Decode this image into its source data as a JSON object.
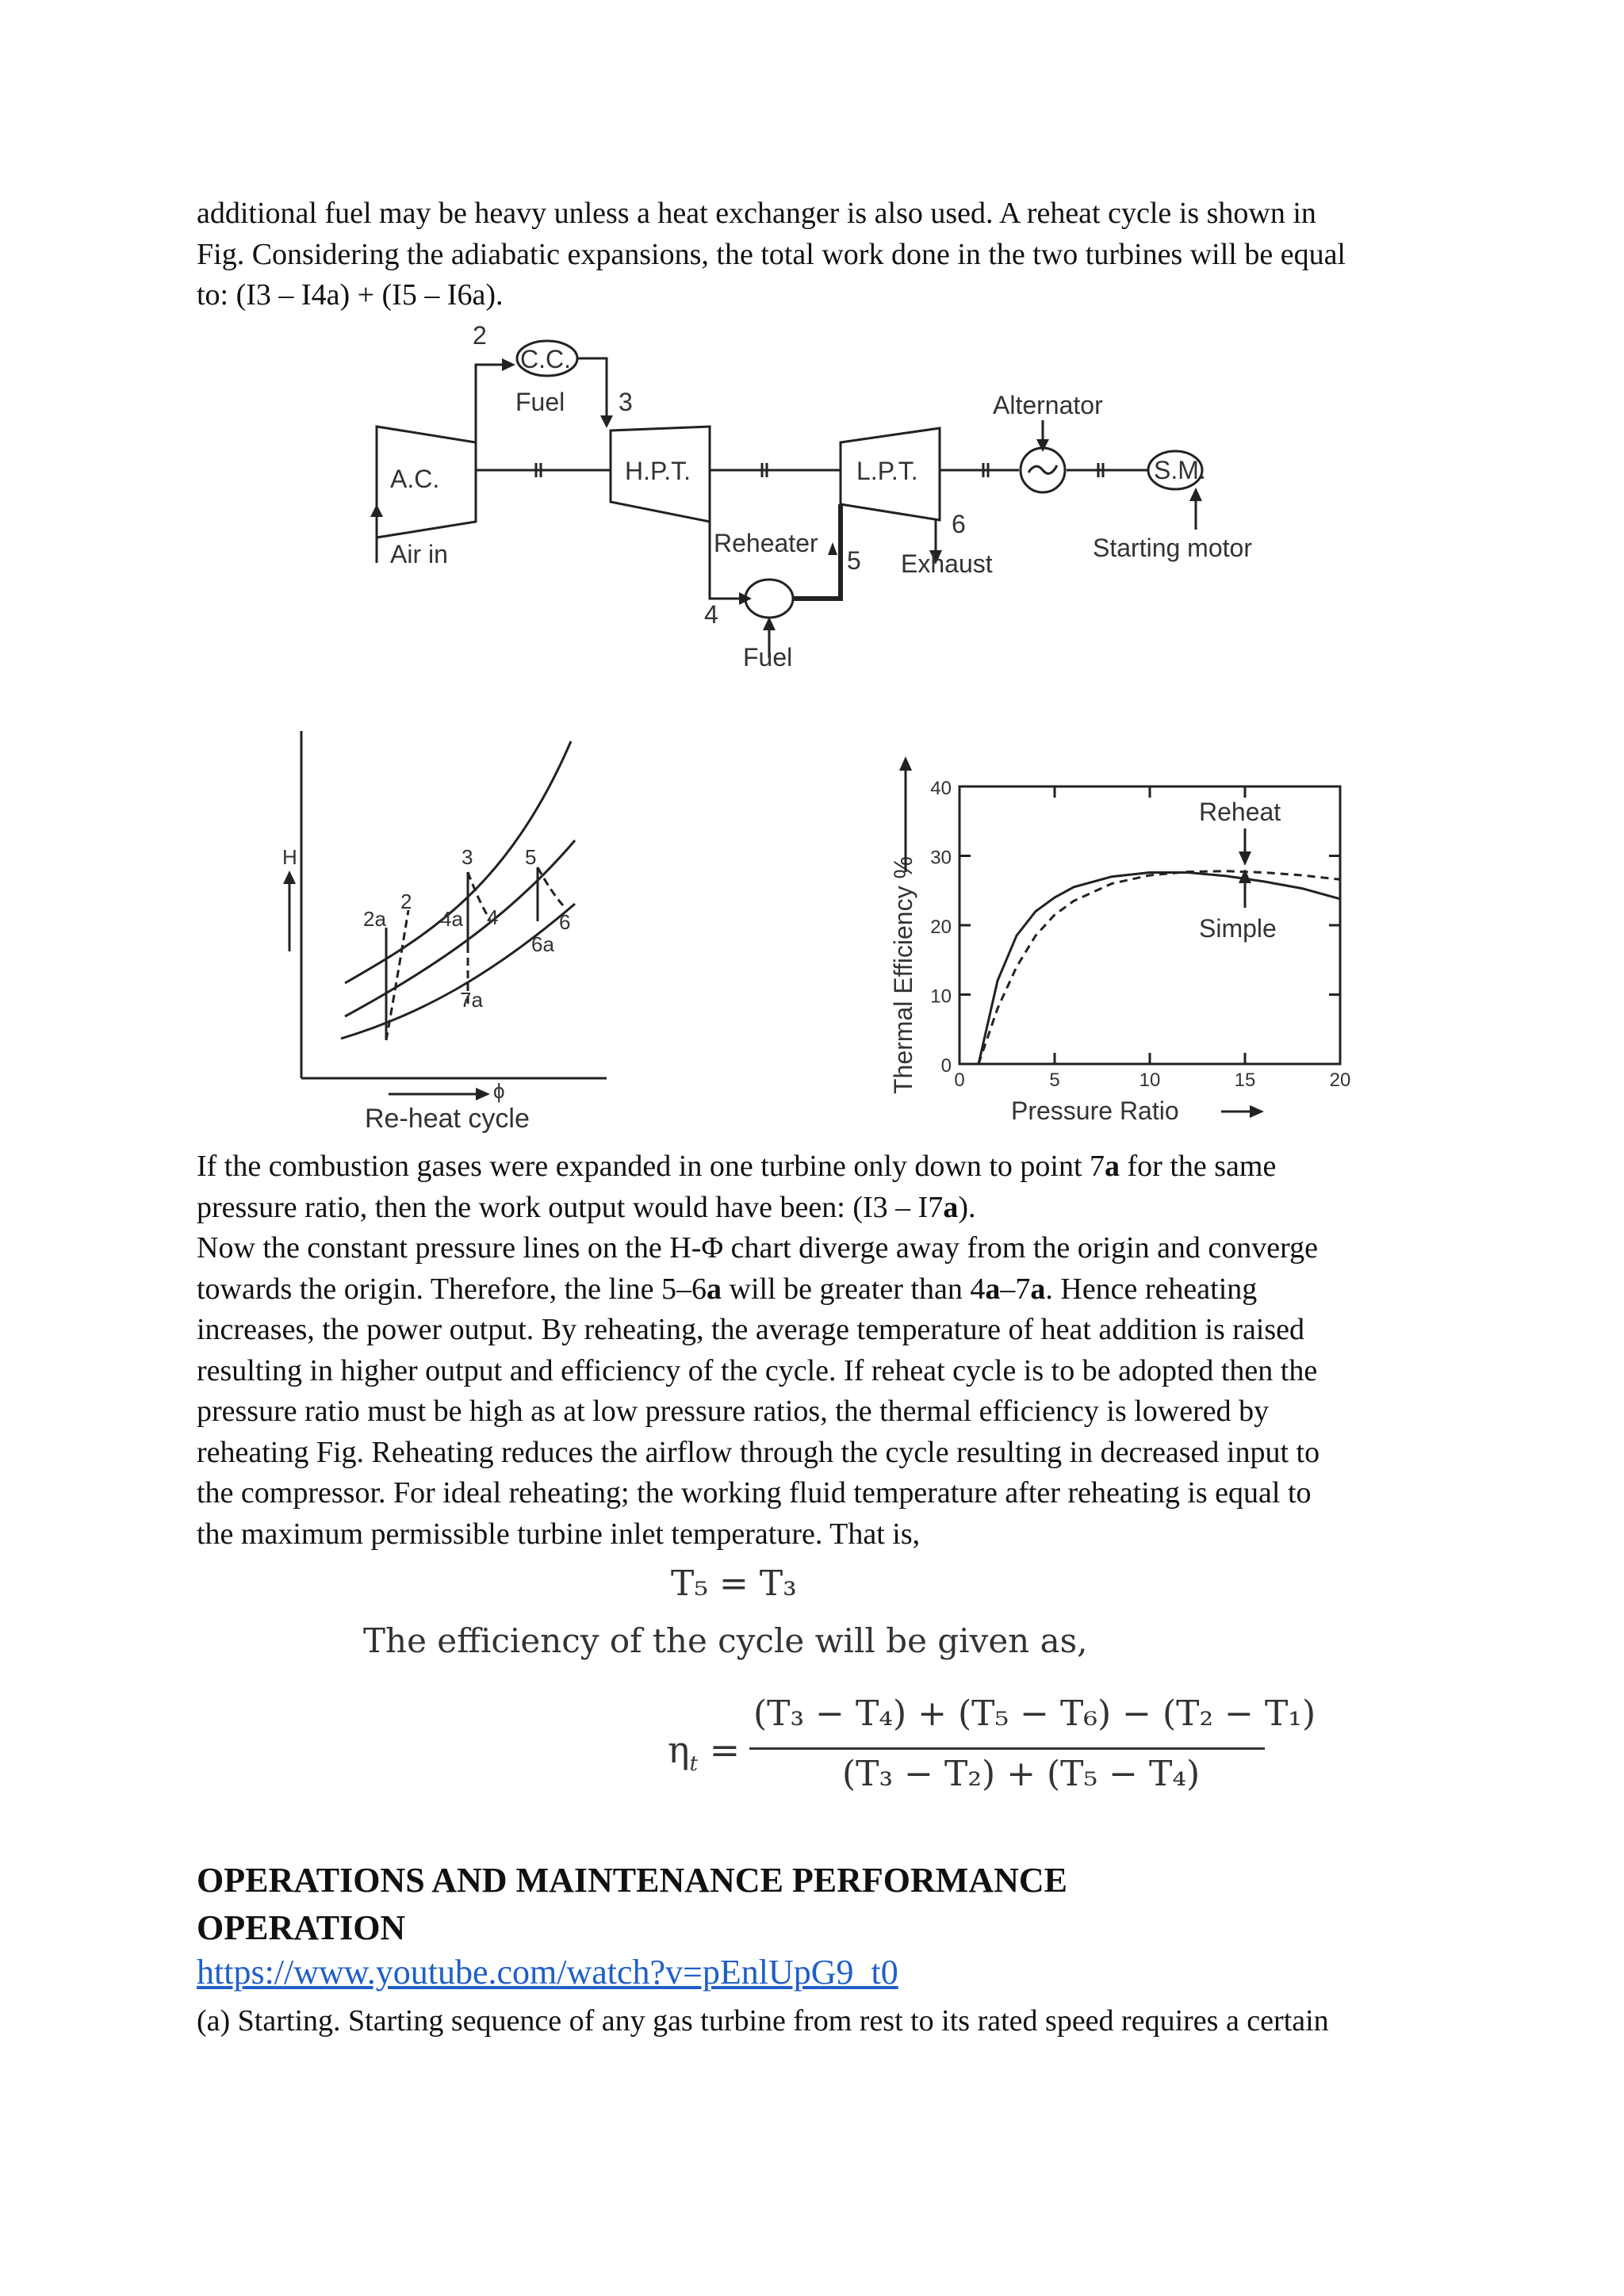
{
  "intro": {
    "line1": "additional fuel may be heavy unless a heat exchanger is also used. A reheat cycle is shown in",
    "line2": "Fig. Considering the adiabatic expansions, the total work done in the two turbines will be equal",
    "line3": "to: (I3 – I4a) + (I5 – I6a)."
  },
  "schematic": {
    "cc": "C.C.",
    "fuel_top": "Fuel",
    "n2": "2",
    "n3": "3",
    "ac": "A.C.",
    "air_in": "Air in",
    "hpt": "H.P.T.",
    "lpt": "L.P.T.",
    "alternator": "Alternator",
    "sm": "S.M.",
    "starting_motor": "Starting motor",
    "reheater": "Reheater",
    "n4": "4",
    "n5": "5",
    "n6": "6",
    "exhaust": "Exhaust",
    "fuel_bottom": "Fuel"
  },
  "hphi_diagram": {
    "ylabel": "H",
    "xlabel": "ϕ",
    "caption": "Re-heat cycle",
    "points": [
      "2a",
      "2",
      "3",
      "4a",
      "4",
      "5",
      "6",
      "6a",
      "7a"
    ]
  },
  "chart_data": {
    "type": "line",
    "title": "",
    "xlabel": "Pressure Ratio",
    "ylabel": "Thermal Efficiency %",
    "xlim": [
      0,
      20
    ],
    "ylim": [
      0,
      40
    ],
    "xticks": [
      "0",
      "5",
      "10",
      "15",
      "20"
    ],
    "yticks": [
      "0",
      "10",
      "20",
      "30",
      "40"
    ],
    "grid": false,
    "series": [
      {
        "name": "Reheat",
        "style": "dashed",
        "x": [
          1,
          2,
          3,
          4,
          5,
          6,
          8,
          10,
          12,
          14,
          16,
          18,
          20
        ],
        "y": [
          0,
          8,
          14,
          18.5,
          21.5,
          23.5,
          26,
          27.2,
          27.7,
          27.8,
          27.6,
          27.2,
          26.6
        ]
      },
      {
        "name": "Simple",
        "style": "solid",
        "x": [
          1,
          2,
          3,
          4,
          5,
          6,
          8,
          10,
          12,
          14,
          16,
          18,
          20
        ],
        "y": [
          0,
          12,
          18.5,
          22,
          24,
          25.5,
          27,
          27.6,
          27.6,
          27.1,
          26.3,
          25.3,
          23.8
        ]
      }
    ],
    "annotations": [
      "Reheat",
      "Simple"
    ]
  },
  "body": {
    "l1a": "If the combustion gases were expanded in one turbine only down to point 7",
    "l1b": "a",
    "l1c": " for the same",
    "l2a": "pressure ratio, then the work output would have been: (I3 – I7",
    "l2b": "a",
    "l2c": ").",
    "l3": "Now the constant pressure lines on the H-Φ chart diverge away from the origin and converge",
    "l4a": "towards the origin. Therefore, the line 5–6",
    "l4b": "a",
    "l4c": " will be greater than 4",
    "l4d": "a",
    "l4e": "–7",
    "l4f": "a",
    "l4g": ". Hence reheating",
    "l5": "increases, the power output. By reheating, the average temperature of heat addition is raised",
    "l6": "resulting in higher output and efficiency of the cycle. If reheat cycle is to be adopted then the",
    "l7": "pressure ratio must be high as at low pressure ratios, the thermal efficiency is lowered by",
    "l8": "reheating Fig. Reheating reduces the airflow through the cycle resulting in decreased input to",
    "l9": "the compressor. For ideal reheating; the working fluid temperature after reheating is equal to",
    "l10": "the maximum permissible turbine inlet temperature. That is,"
  },
  "equations": {
    "eq1": "T₅ = T₃",
    "efficiency_text": "The efficiency of the cycle will be given as,",
    "eta": "η",
    "eta_sub": "t",
    "equals": "=",
    "numerator": "(T₃ − T₄) + (T₅ − T₆) − (T₂ − T₁)",
    "denominator": "(T₃ − T₂) + (T₅ − T₄)"
  },
  "section": {
    "heading_line1": "OPERATIONS AND MAINTENANCE PERFORMANCE",
    "heading_line2": "OPERATION",
    "link": "https://www.youtube.com/watch?v=pEnlUpG9_t0",
    "last_line": "(a) Starting. Starting sequence of any gas turbine from rest to its rated speed requires a certain"
  }
}
